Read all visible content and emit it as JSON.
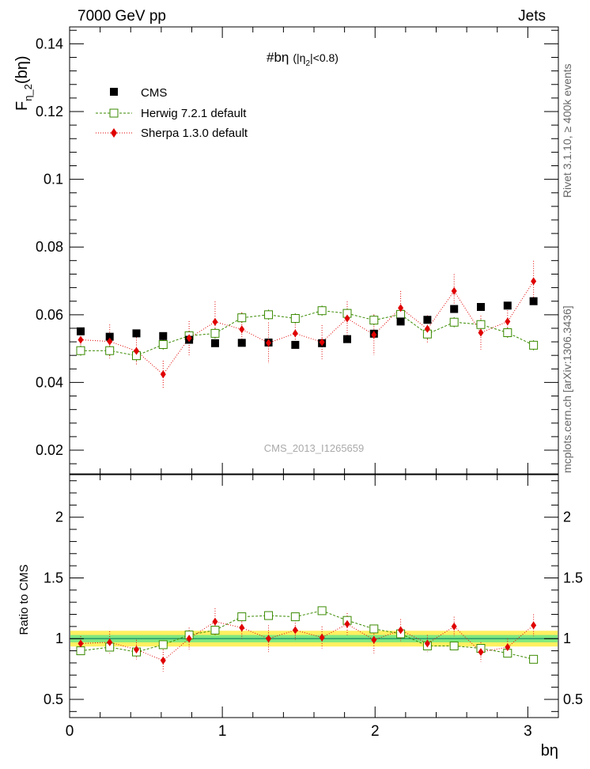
{
  "header": {
    "energy_label": "7000 GeV pp",
    "process_label": "Jets",
    "plot_title": "#bη",
    "plot_title_cut": "(|η",
    "plot_title_cut_sub": "2",
    "plot_title_cut_tail": "|<0.8)",
    "side_label_rivet": "Rivet 3.1.10, ≥ 400k events",
    "side_label_mcplots": "mcplots.cern.ch [arXiv:1306.3436]",
    "watermark": "CMS_2013_I1265659"
  },
  "axes": {
    "y_label_main": "F",
    "y_label_sub": "η_2",
    "y_label_tail": "(bη)",
    "y_label_ratio": "Ratio to CMS",
    "x_label": "bη",
    "x_ticks": [
      "0",
      "1",
      "2",
      "3"
    ],
    "main_y_ticks": [
      "0.02",
      "0.04",
      "0.06",
      "0.08",
      "0.1",
      "0.12",
      "0.14"
    ],
    "ratio_y_ticks": [
      "0.5",
      "1",
      "1.5",
      "2"
    ]
  },
  "legend": {
    "cms": "CMS",
    "herwig": "Herwig 7.2.1 default",
    "sherpa": "Sherpa 1.3.0 default"
  },
  "colors": {
    "cms": "#000000",
    "herwig": "#3a8a00",
    "sherpa": "#e00000",
    "band_inner": "#7fe87f",
    "band_outer": "#fff060"
  },
  "chart_data": {
    "type": "scatter",
    "x": [
      0.0725,
      0.2625,
      0.4375,
      0.6125,
      0.7825,
      0.9525,
      1.1275,
      1.3025,
      1.4775,
      1.6525,
      1.8175,
      1.9925,
      2.1675,
      2.3425,
      2.5175,
      2.6925,
      2.8675,
      3.0375
    ],
    "xlim": [
      0,
      3.2
    ],
    "ylim_main": [
      0.013,
      0.145
    ],
    "ylim_ratio": [
      0.35,
      2.35
    ],
    "series": [
      {
        "name": "CMS",
        "values": [
          0.0551,
          0.0535,
          0.0545,
          0.0537,
          0.0526,
          0.0516,
          0.0517,
          0.0518,
          0.0511,
          0.0516,
          0.0528,
          0.0544,
          0.058,
          0.0585,
          0.0617,
          0.0623,
          0.0627,
          0.064
        ]
      },
      {
        "name": "Herwig 7.2.1 default",
        "values": [
          0.0494,
          0.0494,
          0.0479,
          0.0512,
          0.0538,
          0.0545,
          0.0591,
          0.06,
          0.0589,
          0.0612,
          0.0604,
          0.0584,
          0.0601,
          0.0543,
          0.0578,
          0.0571,
          0.0547,
          0.051
        ],
        "errors": [
          0.0015,
          0.0015,
          0.0015,
          0.0015,
          0.0015,
          0.0015,
          0.0015,
          0.0015,
          0.0015,
          0.0015,
          0.0015,
          0.0015,
          0.0015,
          0.0015,
          0.0015,
          0.0015,
          0.0015,
          0.0015
        ],
        "ratio": [
          0.9,
          0.93,
          0.89,
          0.95,
          1.03,
          1.07,
          1.18,
          1.19,
          1.18,
          1.23,
          1.15,
          1.08,
          1.04,
          0.94,
          0.94,
          0.92,
          0.88,
          0.83
        ],
        "ratio_errors": [
          0.03,
          0.03,
          0.03,
          0.03,
          0.03,
          0.03,
          0.03,
          0.03,
          0.03,
          0.03,
          0.03,
          0.03,
          0.03,
          0.03,
          0.03,
          0.03,
          0.03,
          0.03
        ]
      },
      {
        "name": "Sherpa 1.3.0 default",
        "values": [
          0.0526,
          0.0521,
          0.0493,
          0.0424,
          0.0531,
          0.0579,
          0.0557,
          0.0517,
          0.0545,
          0.0519,
          0.0589,
          0.0541,
          0.062,
          0.0558,
          0.067,
          0.0547,
          0.058,
          0.0699
        ],
        "errors": [
          0.003,
          0.005,
          0.004,
          0.004,
          0.005,
          0.006,
          0.005,
          0.006,
          0.004,
          0.005,
          0.005,
          0.006,
          0.005,
          0.004,
          0.005,
          0.005,
          0.004,
          0.006
        ],
        "ratio": [
          0.96,
          0.97,
          0.91,
          0.82,
          1.0,
          1.14,
          1.09,
          1.0,
          1.07,
          1.01,
          1.12,
          0.99,
          1.07,
          0.96,
          1.1,
          0.89,
          0.93,
          1.11
        ],
        "ratio_errors": [
          0.06,
          0.09,
          0.08,
          0.09,
          0.09,
          0.11,
          0.09,
          0.11,
          0.08,
          0.09,
          0.09,
          0.11,
          0.09,
          0.07,
          0.08,
          0.08,
          0.07,
          0.09
        ]
      }
    ],
    "cms_band_inner": 0.03,
    "cms_band_outer": 0.065
  }
}
